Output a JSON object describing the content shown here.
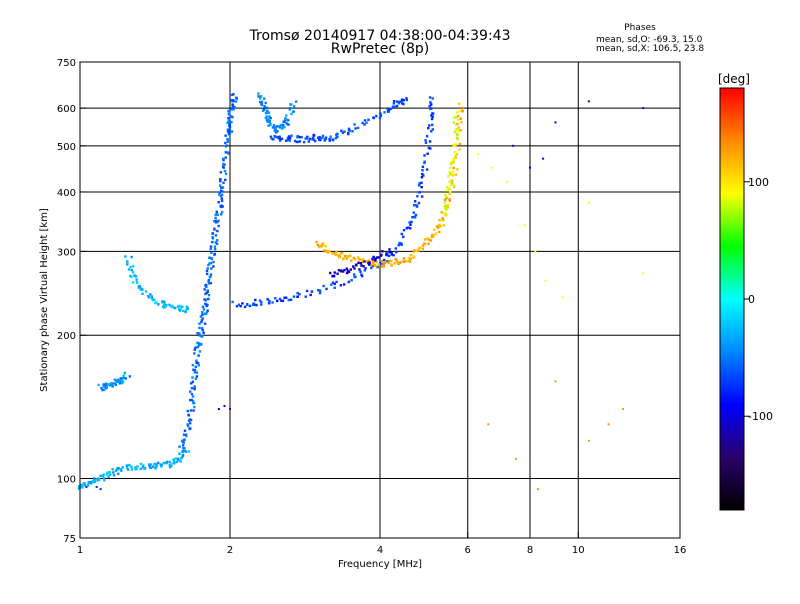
{
  "chart_data": {
    "type": "scatter",
    "title": "Tromsø 20140917 04:38:00-04:39:43",
    "subtitle": "RwPretec (8p)",
    "xlabel": "Frequency [MHz]",
    "ylabel": "Stationary phase Virtual Height [km]",
    "x_scale": "log",
    "y_scale": "log",
    "xlim": [
      1,
      16
    ],
    "ylim": [
      75,
      750
    ],
    "x_ticks": [
      1,
      2,
      4,
      6,
      8,
      10,
      16
    ],
    "y_ticks": [
      75,
      100,
      200,
      300,
      400,
      500,
      600,
      750
    ],
    "grid_x": [
      2,
      4,
      6,
      8,
      10
    ],
    "grid_y": [
      100,
      200,
      300,
      400,
      500,
      600
    ],
    "legend_title": "Phases",
    "legend_lines": [
      "mean, sd,O: -69.3, 15.0",
      "mean, sd,X: 106.5, 23.8"
    ],
    "colorbar": {
      "unit": "[deg]",
      "range": [
        -180,
        180
      ],
      "ticks": [
        100,
        0,
        -100
      ],
      "colors": [
        "#000000",
        "#2b006b",
        "#0000ff",
        "#0088ff",
        "#00ffff",
        "#00ff00",
        "#ffff00",
        "#ff8800",
        "#ff0000"
      ]
    },
    "series": [
      {
        "segments": [
          [
            1.0,
            96
          ],
          [
            1.05,
            98
          ],
          [
            1.12,
            101
          ],
          [
            1.2,
            104
          ],
          [
            1.3,
            106
          ],
          [
            1.4,
            106
          ],
          [
            1.5,
            107
          ],
          [
            1.58,
            110
          ],
          [
            1.65,
            116
          ]
        ],
        "phase": -30
      },
      {
        "segments": [
          [
            1.03,
            96
          ],
          [
            1.08,
            96
          ],
          [
            1.1,
            95
          ]
        ],
        "phase": -80
      },
      {
        "segments": [
          [
            1.1,
            155
          ],
          [
            1.15,
            157
          ],
          [
            1.2,
            160
          ],
          [
            1.25,
            165
          ]
        ],
        "phase": -40
      },
      {
        "segments": [
          [
            1.25,
            290
          ],
          [
            1.28,
            262
          ],
          [
            1.35,
            245
          ],
          [
            1.45,
            233
          ],
          [
            1.55,
            228
          ],
          [
            1.65,
            226
          ]
        ],
        "phase": -25
      },
      {
        "segments": [
          [
            1.6,
            116
          ],
          [
            1.65,
            128
          ],
          [
            1.68,
            145
          ],
          [
            1.7,
            165
          ],
          [
            1.72,
            185
          ],
          [
            1.75,
            205
          ],
          [
            1.78,
            225
          ],
          [
            1.8,
            245
          ],
          [
            1.82,
            270
          ],
          [
            1.85,
            300
          ],
          [
            1.87,
            330
          ],
          [
            1.9,
            360
          ],
          [
            1.92,
            400
          ],
          [
            1.95,
            450
          ],
          [
            1.98,
            520
          ],
          [
            2.0,
            560
          ],
          [
            2.02,
            600
          ],
          [
            2.05,
            640
          ]
        ],
        "phase": -55
      },
      {
        "segments": [
          [
            1.9,
            140
          ],
          [
            1.95,
            142
          ],
          [
            2.0,
            140
          ]
        ],
        "phase": -95
      },
      {
        "segments": [
          [
            2.05,
            232
          ],
          [
            2.3,
            234
          ],
          [
            2.6,
            238
          ],
          [
            3.0,
            248
          ],
          [
            3.5,
            262
          ],
          [
            4.0,
            282
          ],
          [
            4.3,
            300
          ],
          [
            4.6,
            340
          ],
          [
            4.8,
            390
          ],
          [
            4.95,
            460
          ],
          [
            5.05,
            560
          ],
          [
            5.1,
            640
          ]
        ],
        "phase": -70
      },
      {
        "segments": [
          [
            2.4,
            520
          ],
          [
            2.6,
            520
          ],
          [
            2.8,
            515
          ],
          [
            3.0,
            520
          ],
          [
            3.2,
            520
          ],
          [
            3.5,
            540
          ],
          [
            4.0,
            580
          ],
          [
            4.3,
            610
          ],
          [
            4.5,
            630
          ]
        ],
        "phase": -65
      },
      {
        "segments": [
          [
            2.3,
            640
          ],
          [
            2.35,
            600
          ],
          [
            2.4,
            560
          ],
          [
            2.5,
            540
          ],
          [
            2.6,
            560
          ],
          [
            2.7,
            620
          ]
        ],
        "phase": -45
      },
      {
        "segments": [
          [
            3.0,
            312
          ],
          [
            3.2,
            300
          ],
          [
            3.4,
            292
          ],
          [
            3.7,
            285
          ],
          [
            4.0,
            282
          ],
          [
            4.3,
            285
          ],
          [
            4.6,
            290
          ],
          [
            4.9,
            310
          ],
          [
            5.2,
            330
          ],
          [
            5.4,
            360
          ],
          [
            5.6,
            420
          ],
          [
            5.75,
            520
          ],
          [
            5.8,
            620
          ]
        ],
        "phase": 120
      },
      {
        "segments": [
          [
            5.4,
            360
          ],
          [
            5.55,
            420
          ],
          [
            5.65,
            500
          ],
          [
            5.72,
            600
          ]
        ],
        "phase": 85
      },
      {
        "segments": [
          [
            3.2,
            268
          ],
          [
            3.5,
            275
          ],
          [
            3.8,
            286
          ],
          [
            4.2,
            300
          ]
        ],
        "phase": -110
      },
      {
        "segments": [
          [
            6.3,
            480
          ],
          [
            6.7,
            450
          ],
          [
            7.2,
            420
          ],
          [
            7.8,
            340
          ],
          [
            8.2,
            300
          ],
          [
            8.6,
            260
          ],
          [
            9.3,
            240
          ],
          [
            10.5,
            380
          ],
          [
            13.5,
            270
          ]
        ],
        "phase": 90
      },
      {
        "segments": [
          [
            7.4,
            500
          ],
          [
            8.0,
            450
          ],
          [
            8.5,
            470
          ],
          [
            9.0,
            560
          ],
          [
            10.5,
            620
          ],
          [
            13.5,
            600
          ]
        ],
        "phase": -100
      },
      {
        "segments": [
          [
            6.6,
            130
          ],
          [
            7.5,
            110
          ],
          [
            8.3,
            95
          ],
          [
            9.0,
            160
          ],
          [
            10.5,
            120
          ],
          [
            11.5,
            130
          ],
          [
            12.3,
            140
          ]
        ],
        "phase": 130
      }
    ]
  }
}
